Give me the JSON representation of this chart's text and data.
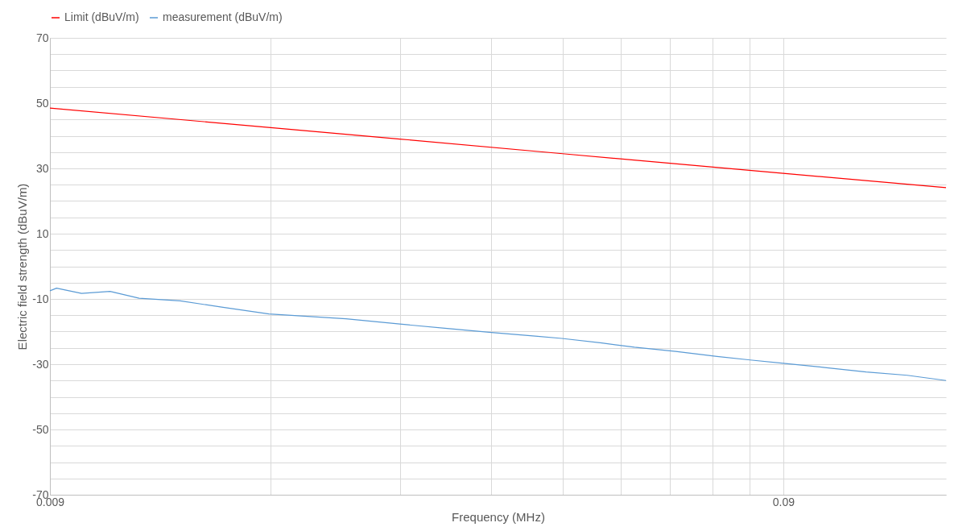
{
  "chart_data": {
    "type": "line",
    "xlabel": "Frequency (MHz)",
    "ylabel": "Electric field strength (dBuV/m)",
    "log": "x",
    "grid": true,
    "legend": "top",
    "marker": "none",
    "line_style": "solid",
    "xlim": [
      0.009,
      0.15
    ],
    "ylim": [
      -70,
      70
    ],
    "xticks": [
      0.009,
      {
        "value": 0.018,
        "label": null
      },
      {
        "value": 0.027,
        "label": null
      },
      {
        "value": 0.036,
        "label": null
      },
      {
        "value": 0.045,
        "label": null
      },
      {
        "value": 0.054,
        "label": null
      },
      {
        "value": 0.063,
        "label": null
      },
      {
        "value": 0.072,
        "label": null
      },
      {
        "value": 0.081,
        "label": null
      },
      0.09
    ],
    "yticks": [
      -70,
      {
        "value": -65,
        "label": null
      },
      {
        "value": -60,
        "label": null
      },
      {
        "value": -55,
        "label": null
      },
      -50,
      {
        "value": -45,
        "label": null
      },
      {
        "value": -40,
        "label": null
      },
      {
        "value": -35,
        "label": null
      },
      -30,
      {
        "value": -25,
        "label": null
      },
      {
        "value": -20,
        "label": null
      },
      {
        "value": -15,
        "label": null
      },
      -10,
      {
        "value": -5,
        "label": null
      },
      {
        "value": 0,
        "label": null
      },
      {
        "value": 5,
        "label": null
      },
      10,
      {
        "value": 15,
        "label": null
      },
      {
        "value": 20,
        "label": null
      },
      {
        "value": 25,
        "label": null
      },
      30,
      {
        "value": 35,
        "label": null
      },
      {
        "value": 40,
        "label": null
      },
      {
        "value": 45,
        "label": null
      },
      50,
      {
        "value": 55,
        "label": null
      },
      {
        "value": 60,
        "label": null
      },
      {
        "value": 65,
        "label": null
      },
      70
    ],
    "series": [
      {
        "name": "Limit (dBuV/m)",
        "color": "#ff0000",
        "x": [
          0.009,
          0.018,
          0.027,
          0.045,
          0.09,
          0.15
        ],
        "values": [
          48.5,
          42.5,
          39.0,
          34.5,
          28.5,
          24.1
        ]
      },
      {
        "name": "measurement (dBuV/m)",
        "color": "#5b9bd5",
        "x": [
          0.009,
          0.00919,
          0.00994,
          0.01087,
          0.01191,
          0.01355,
          0.01543,
          0.0179,
          0.02,
          0.0228,
          0.027,
          0.0311,
          0.036,
          0.0413,
          0.0449,
          0.0509,
          0.0564,
          0.0642,
          0.0731,
          0.0811,
          0.09,
          0.1025,
          0.1167,
          0.1328,
          0.15
        ],
        "values": [
          -7.5,
          -6.7,
          -8.3,
          -7.7,
          -9.8,
          -10.6,
          -12.5,
          -14.6,
          -15.3,
          -16.1,
          -17.7,
          -19.0,
          -20.3,
          -21.4,
          -22.1,
          -23.5,
          -24.8,
          -26.1,
          -27.6,
          -28.7,
          -29.7,
          -31.0,
          -32.4,
          -33.4,
          -35.0
        ]
      }
    ]
  }
}
